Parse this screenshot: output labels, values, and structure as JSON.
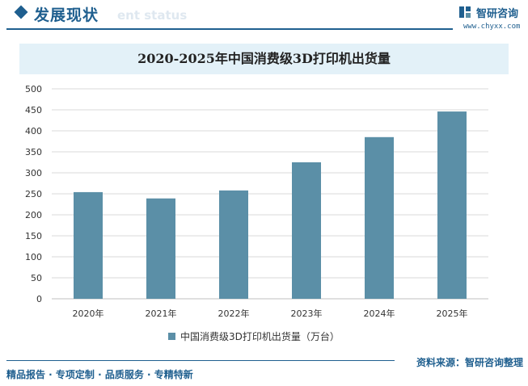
{
  "header": {
    "title": "发展现状",
    "ghost_text": "ent status",
    "logo_text": "智研咨询",
    "logo_url": "www.chyxx.com"
  },
  "footer": {
    "tags": "精品报告 · 专项定制 · 品质服务 · 专精特新",
    "source": "资料来源：智研咨询整理"
  },
  "colors": {
    "brand": "#1f5f8f",
    "bar": "#5b8fa7",
    "title_band": "#e3f1f8"
  },
  "chart_data": {
    "type": "bar",
    "title": "2020-2025年中国消费级3D打印机出货量",
    "categories": [
      "2020年",
      "2021年",
      "2022年",
      "2023年",
      "2024年",
      "2025年"
    ],
    "series": [
      {
        "name": "中国消费级3D打印机出货量（万台）",
        "values": [
          254,
          239,
          258,
          325,
          385,
          446
        ]
      }
    ],
    "yticks": [
      "0",
      "50",
      "100",
      "150",
      "200",
      "250",
      "300",
      "350",
      "400",
      "450",
      "500"
    ],
    "ylim": [
      0,
      500
    ],
    "grid": true,
    "legend_position": "bottom"
  }
}
